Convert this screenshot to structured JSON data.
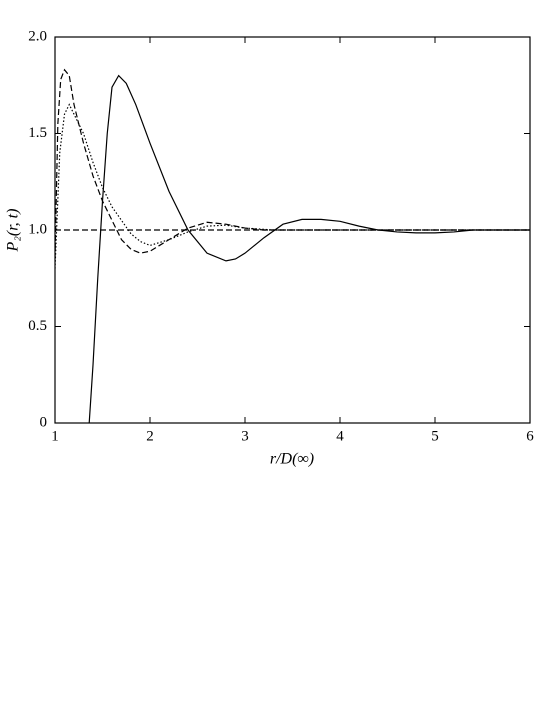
{
  "chart_data": {
    "type": "line",
    "xlabel": "r/D(∞)",
    "ylabel": "P₂(r, t)",
    "xlim": [
      1,
      6
    ],
    "ylim": [
      0,
      2
    ],
    "xticks": [
      1,
      2,
      3,
      4,
      5,
      6
    ],
    "yticks": [
      0,
      0.5,
      {
        "value": 1,
        "label": "1.0"
      },
      1.5,
      {
        "value": 2,
        "label": "2.0"
      }
    ],
    "series": [
      {
        "color": "#000000",
        "dash": "solid",
        "x": [
          1.36,
          1.4,
          1.45,
          1.5,
          1.55,
          1.6,
          1.67,
          1.75,
          1.85,
          2.0,
          2.2,
          2.4,
          2.6,
          2.8,
          2.9,
          3.0,
          3.2,
          3.4,
          3.6,
          3.8,
          4.0,
          4.2,
          4.4,
          4.6,
          4.8,
          5.0,
          5.2,
          5.4,
          6.0
        ],
        "values": [
          0,
          0.3,
          0.75,
          1.15,
          1.5,
          1.74,
          1.8,
          1.76,
          1.65,
          1.45,
          1.2,
          1.0,
          0.88,
          0.84,
          0.85,
          0.88,
          0.96,
          1.03,
          1.055,
          1.055,
          1.045,
          1.02,
          1.0,
          0.99,
          0.985,
          0.985,
          0.99,
          1.0,
          1.0
        ]
      },
      {
        "color": "#000000",
        "dash": "dashed",
        "x": [
          1.0,
          1.03,
          1.06,
          1.1,
          1.15,
          1.2,
          1.3,
          1.4,
          1.5,
          1.6,
          1.7,
          1.8,
          1.9,
          2.0,
          2.2,
          2.4,
          2.6,
          2.8,
          3.0,
          3.2,
          6.0
        ],
        "values": [
          0.85,
          1.55,
          1.78,
          1.83,
          1.8,
          1.65,
          1.45,
          1.28,
          1.15,
          1.05,
          0.95,
          0.9,
          0.88,
          0.89,
          0.95,
          1.01,
          1.04,
          1.03,
          1.01,
          1.0,
          1.0
        ]
      },
      {
        "color": "#000000",
        "dash": "dotted",
        "x": [
          1.0,
          1.05,
          1.1,
          1.15,
          1.2,
          1.3,
          1.4,
          1.5,
          1.6,
          1.7,
          1.8,
          1.9,
          2.0,
          2.2,
          2.4,
          2.6,
          2.8,
          3.0,
          3.3,
          6.0
        ],
        "values": [
          0.8,
          1.4,
          1.6,
          1.65,
          1.6,
          1.5,
          1.35,
          1.22,
          1.12,
          1.05,
          0.98,
          0.94,
          0.92,
          0.95,
          0.99,
          1.02,
          1.025,
          1.01,
          1.0,
          1.0
        ]
      },
      {
        "color": "#000000",
        "dash": "dashed",
        "x": [
          1.0,
          6.0
        ],
        "values": [
          1.0,
          1.0
        ]
      }
    ]
  }
}
